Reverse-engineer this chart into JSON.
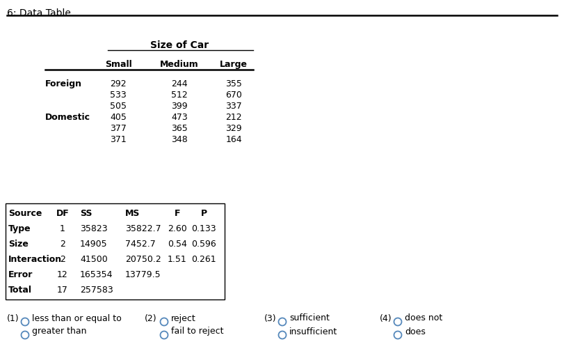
{
  "title": "6: Data Table",
  "size_of_car_header": "Size of Car",
  "col_headers": [
    "Small",
    "Medium",
    "Large"
  ],
  "row_labels": [
    "Foreign",
    "",
    "",
    "Domestic",
    "",
    ""
  ],
  "data_rows": [
    [
      "292",
      "244",
      "355"
    ],
    [
      "533",
      "512",
      "670"
    ],
    [
      "505",
      "399",
      "337"
    ],
    [
      "405",
      "473",
      "212"
    ],
    [
      "377",
      "365",
      "329"
    ],
    [
      "371",
      "348",
      "164"
    ]
  ],
  "anova_headers": [
    "Source",
    "DF",
    "SS",
    "MS",
    "F",
    "P"
  ],
  "anova_rows": [
    [
      "Type",
      "1",
      "35823",
      "35822.7",
      "2.60",
      "0.133"
    ],
    [
      "Size",
      "2",
      "14905",
      "7452.7",
      "0.54",
      "0.596"
    ],
    [
      "Interaction",
      "2",
      "41500",
      "20750.2",
      "1.51",
      "0.261"
    ],
    [
      "Error",
      "12",
      "165354",
      "13779.5",
      "",
      ""
    ],
    [
      "Total",
      "17",
      "257583",
      "",
      "",
      ""
    ]
  ],
  "bg_color": "#ffffff",
  "circle_color": "#5588bb",
  "fig_width": 8.11,
  "fig_height": 5.14,
  "dpi": 100
}
